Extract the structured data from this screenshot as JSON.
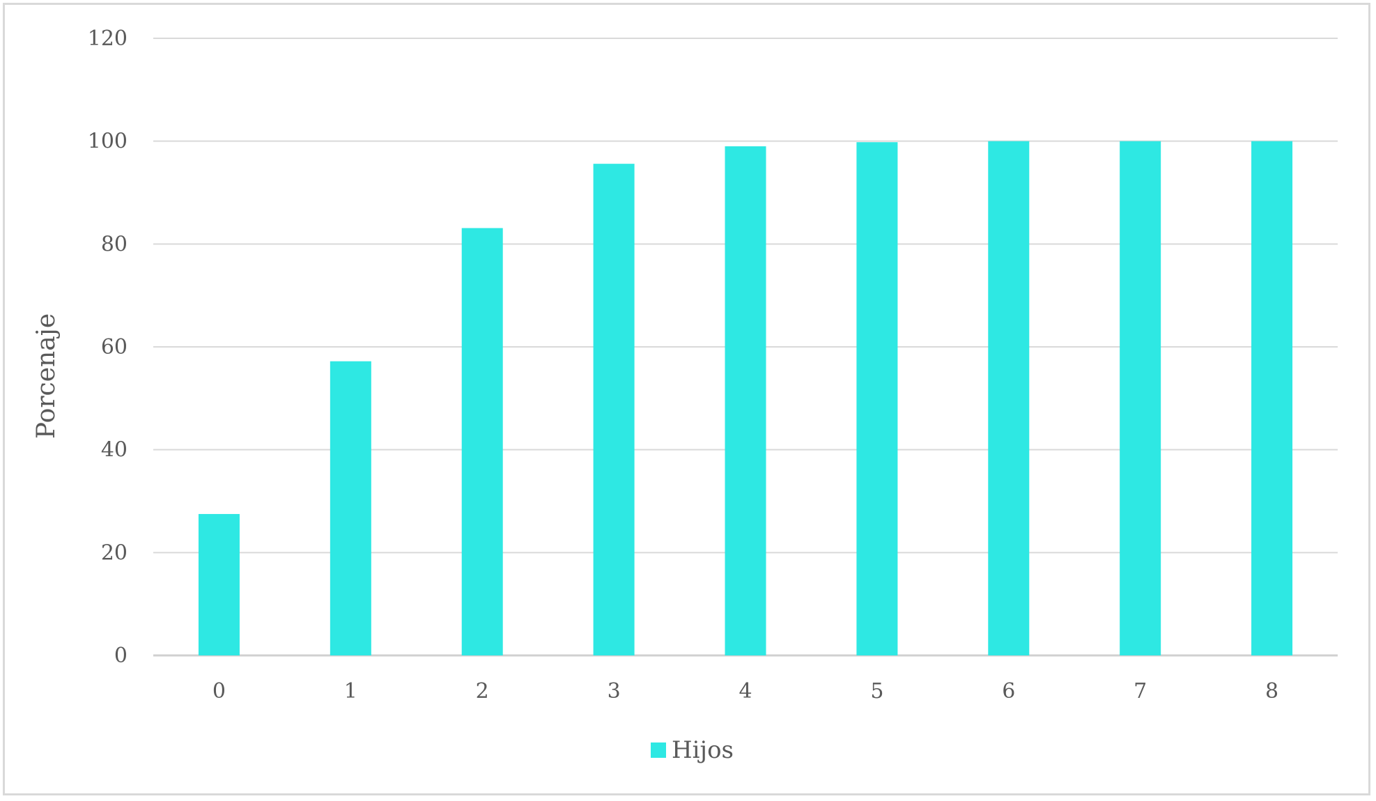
{
  "chart_data": {
    "type": "bar",
    "title": "",
    "xlabel": "",
    "ylabel": "Porcenaje",
    "categories": [
      "0",
      "1",
      "2",
      "3",
      "4",
      "5",
      "6",
      "7",
      "8"
    ],
    "series": [
      {
        "name": "Hijos",
        "color": "#2ee8e3",
        "values": [
          27.5,
          57.2,
          83.1,
          95.6,
          99.0,
          99.8,
          100,
          100,
          100
        ]
      }
    ],
    "ylim": [
      0,
      120
    ],
    "yticks": [
      "0",
      "20",
      "40",
      "60",
      "80",
      "100",
      "120"
    ],
    "grid": true,
    "legend": "bottom-center"
  }
}
